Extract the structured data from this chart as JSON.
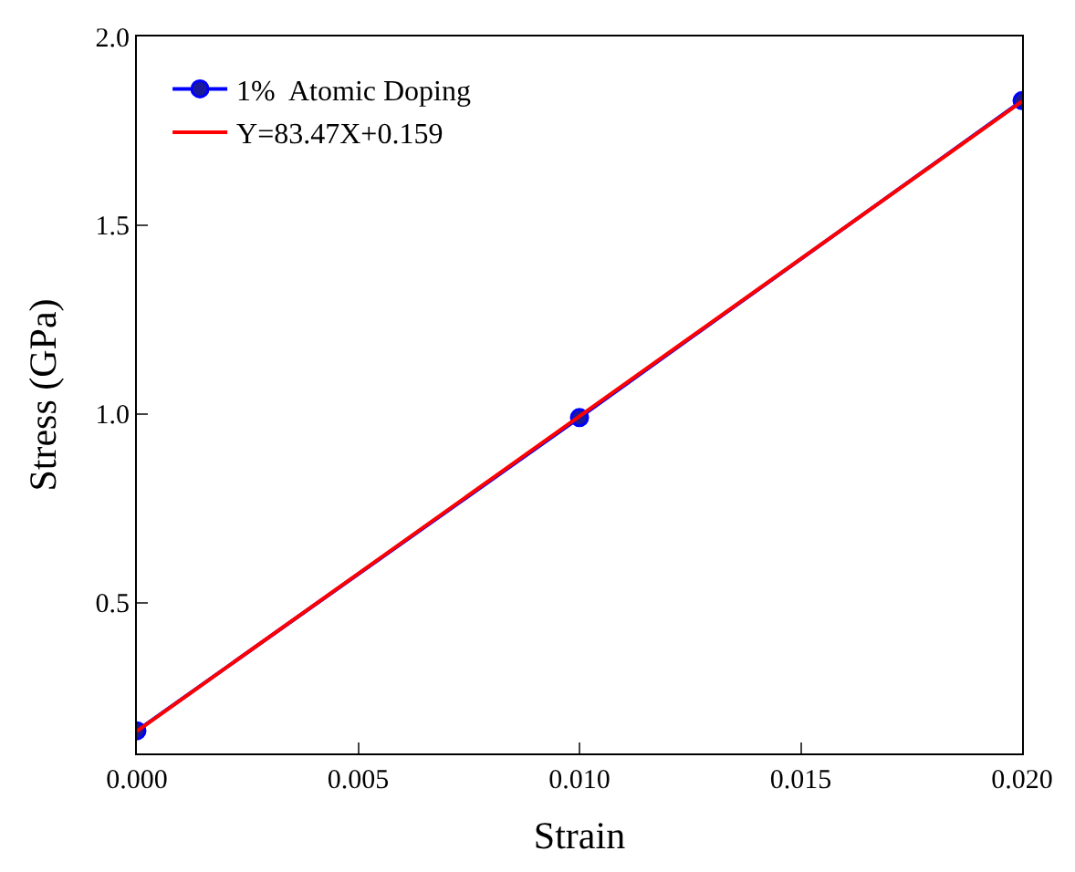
{
  "chart_data": {
    "type": "line",
    "xlabel": "Strain",
    "ylabel": "Stress (GPa)",
    "xlim": [
      0.0,
      0.02
    ],
    "xticks": [
      {
        "value": 0,
        "label": "0.000"
      },
      0.005,
      {
        "value": 0.01,
        "label": "0.010"
      },
      0.015,
      {
        "value": 0.02,
        "label": "0.020"
      }
    ],
    "ylim": [
      0.1,
      2.0
    ],
    "yticks": [
      0.5,
      {
        "value": 1,
        "label": "1.0"
      },
      1.5,
      {
        "value": 2,
        "label": "2.0"
      }
    ],
    "legend": "top left",
    "series": [
      {
        "name": "1%  Atomic Doping",
        "color": "#0000ff",
        "marker": "circle",
        "x": [
          0.0,
          0.01,
          0.02
        ],
        "values": [
          0.16,
          0.99,
          1.83
        ]
      },
      {
        "name": "Y=83.47X+0.159",
        "color": "#ff0000",
        "marker": "none",
        "x": [
          0.0,
          0.02
        ],
        "values": [
          0.159,
          1.828
        ]
      }
    ]
  }
}
